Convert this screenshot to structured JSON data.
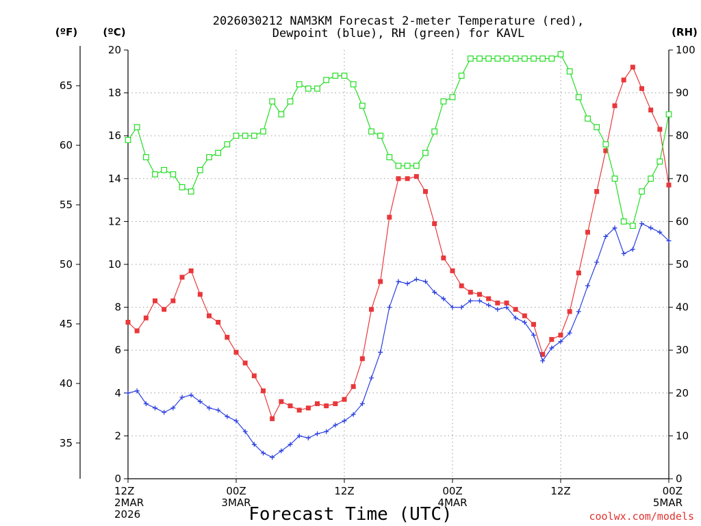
{
  "chart_data": {
    "type": "line",
    "title": "2026030212 NAM3KM Forecast 2-meter Temperature (red),",
    "title_line2": "Dewpoint (blue), RH (green) for KAVL",
    "xlabel": "Forecast Time (UTC)",
    "credit": "coolwx.com/models",
    "units": {
      "fahrenheit": "(ºF)",
      "celsius": "(ºC)",
      "rh": "(RH)"
    },
    "x_forecast_hour_range": [
      0,
      60
    ],
    "ylim_celsius": [
      0,
      20
    ],
    "ylim_rh": [
      0,
      100
    ],
    "ylim_fahrenheit": [
      32,
      68
    ],
    "celsius_ticks": [
      "0",
      "2",
      "4",
      "6",
      "8",
      "10",
      "12",
      "14",
      "16",
      "18",
      "20"
    ],
    "rh_ticks": [
      "0",
      "10",
      "20",
      "30",
      "40",
      "50",
      "60",
      "70",
      "80",
      "90",
      "100"
    ],
    "fahrenheit_ticks": [
      "35",
      "40",
      "45",
      "50",
      "55",
      "60",
      "65"
    ],
    "x_ticks": [
      {
        "hour": 0,
        "lines": [
          "12Z",
          "2MAR",
          "2026"
        ]
      },
      {
        "hour": 12,
        "lines": [
          "00Z",
          "3MAR"
        ]
      },
      {
        "hour": 24,
        "lines": [
          "12Z"
        ]
      },
      {
        "hour": 36,
        "lines": [
          "00Z",
          "4MAR"
        ]
      },
      {
        "hour": 48,
        "lines": [
          "12Z"
        ]
      },
      {
        "hour": 60,
        "lines": [
          "00Z",
          "5MAR"
        ]
      }
    ],
    "forecast_hours": [
      0,
      1,
      2,
      3,
      4,
      5,
      6,
      7,
      8,
      9,
      10,
      11,
      12,
      13,
      14,
      15,
      16,
      17,
      18,
      19,
      20,
      21,
      22,
      23,
      24,
      25,
      26,
      27,
      28,
      29,
      30,
      31,
      32,
      33,
      34,
      35,
      36,
      37,
      38,
      39,
      40,
      41,
      42,
      43,
      44,
      45,
      46,
      47,
      48,
      49,
      50,
      51,
      52,
      53,
      54,
      55,
      56,
      57,
      58,
      59,
      60
    ],
    "series": [
      {
        "name": "Temperature",
        "unit": "C",
        "color": "#e8383b",
        "marker": "filled-square",
        "values": [
          7.3,
          6.9,
          7.5,
          8.3,
          7.9,
          8.3,
          9.4,
          9.7,
          8.6,
          7.6,
          7.3,
          6.6,
          5.9,
          5.4,
          4.8,
          4.1,
          2.8,
          3.6,
          3.4,
          3.2,
          3.3,
          3.5,
          3.4,
          3.5,
          3.7,
          4.3,
          5.6,
          7.9,
          9.2,
          12.2,
          14.0,
          14.0,
          14.1,
          13.4,
          11.9,
          10.3,
          9.7,
          9.0,
          8.7,
          8.6,
          8.4,
          8.2,
          8.2,
          7.9,
          7.6,
          7.2,
          5.8,
          6.5,
          6.7,
          7.8,
          9.6,
          11.5,
          13.4,
          15.3,
          17.4,
          18.6,
          19.2,
          18.2,
          17.2,
          16.3,
          13.7
        ]
      },
      {
        "name": "Dewpoint",
        "unit": "C",
        "color": "#2a3fe0",
        "marker": "plus",
        "values": [
          4.0,
          4.1,
          3.5,
          3.3,
          3.1,
          3.3,
          3.8,
          3.9,
          3.6,
          3.3,
          3.2,
          2.9,
          2.7,
          2.2,
          1.6,
          1.2,
          1.0,
          1.3,
          1.6,
          2.0,
          1.9,
          2.1,
          2.2,
          2.5,
          2.7,
          3.0,
          3.5,
          4.7,
          5.9,
          8.0,
          9.2,
          9.1,
          9.3,
          9.2,
          8.7,
          8.4,
          8.0,
          8.0,
          8.3,
          8.3,
          8.1,
          7.9,
          8.0,
          7.5,
          7.3,
          6.7,
          5.5,
          6.1,
          6.4,
          6.8,
          7.8,
          9.0,
          10.1,
          11.3,
          11.7,
          10.5,
          10.7,
          11.9,
          11.7,
          11.5,
          11.1
        ]
      },
      {
        "name": "RH",
        "unit": "%",
        "color": "#22dd22",
        "marker": "open-square",
        "values": [
          79,
          82,
          75,
          71,
          72,
          71,
          68,
          67,
          72,
          75,
          76,
          78,
          80,
          80,
          80,
          81,
          88,
          85,
          88,
          92,
          91,
          91,
          93,
          94,
          94,
          92,
          87,
          81,
          80,
          75,
          73,
          73,
          73,
          76,
          81,
          88,
          89,
          94,
          98,
          98,
          98,
          98,
          98,
          98,
          98,
          98,
          98,
          98,
          99,
          95,
          89,
          84,
          82,
          78,
          70,
          60,
          59,
          67,
          70,
          74,
          85
        ]
      }
    ]
  }
}
